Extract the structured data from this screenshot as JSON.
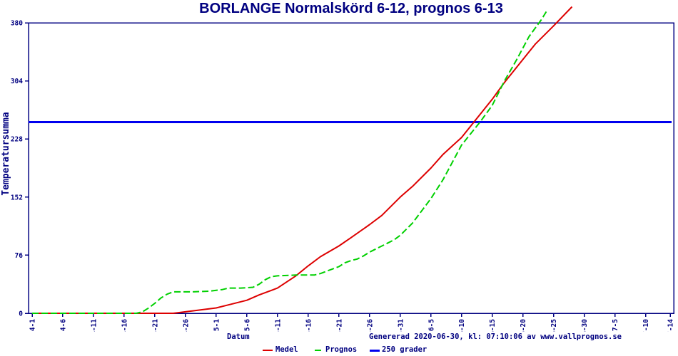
{
  "title": "BORLANGE Normalskörd 6-12, prognos 6-13",
  "footer": {
    "generated": "Genererad 2020-06-30, kl: 07:10:06 av www.vallprognos.se"
  },
  "legend": {
    "position": "bottom-center",
    "items": [
      {
        "label": "Medel",
        "color": "#dd0000",
        "line_style": "solid"
      },
      {
        "label": "Prognos",
        "color": "#00d000",
        "line_style": "dashed"
      },
      {
        "label": "250 grader",
        "color": "#0000ee",
        "line_style": "solid"
      }
    ]
  },
  "colors": {
    "axis": "#000080",
    "text": "#000080",
    "medel_line": "#dd0000",
    "prognos_line": "#00d000",
    "reference_line": "#0000ee",
    "background": "#ffffff"
  },
  "chart_data": {
    "type": "line",
    "title": "BORLANGE Normalskörd 6-12, prognos 6-13",
    "xlabel": "Datum",
    "ylabel": "Temperatursumma",
    "ylim": [
      0,
      380
    ],
    "yticks": [
      0,
      76,
      152,
      228,
      304,
      380
    ],
    "xticks": [
      "4-1",
      "4-6",
      "4-11",
      "4-16",
      "4-21",
      "4-26",
      "5-1",
      "5-6",
      "5-11",
      "5-16",
      "5-21",
      "5-26",
      "5-31",
      "6-5",
      "6-10",
      "6-15",
      "6-20",
      "6-25",
      "6-30",
      "7-5",
      "7-10",
      "7-14"
    ],
    "x_range": [
      "4-1",
      "7-14"
    ],
    "grid": false,
    "reference_line": {
      "name": "250 grader",
      "value": 250,
      "color": "#0000ee"
    },
    "series": [
      {
        "name": "Medel",
        "color": "#dd0000",
        "style": "solid",
        "points": [
          [
            "4-1",
            0
          ],
          [
            "4-6",
            0
          ],
          [
            "4-11",
            0
          ],
          [
            "4-16",
            0
          ],
          [
            "4-20",
            0
          ],
          [
            "4-24",
            0
          ],
          [
            "4-26",
            2
          ],
          [
            "4-28",
            4
          ],
          [
            "5-1",
            7
          ],
          [
            "5-3",
            11
          ],
          [
            "5-6",
            17
          ],
          [
            "5-8",
            24
          ],
          [
            "5-11",
            33
          ],
          [
            "5-14",
            49
          ],
          [
            "5-16",
            62
          ],
          [
            "5-18",
            74
          ],
          [
            "5-21",
            88
          ],
          [
            "5-23",
            99
          ],
          [
            "5-26",
            116
          ],
          [
            "5-28",
            128
          ],
          [
            "5-31",
            152
          ],
          [
            "6-2",
            166
          ],
          [
            "6-5",
            190
          ],
          [
            "6-7",
            208
          ],
          [
            "6-10",
            230
          ],
          [
            "6-12",
            250
          ],
          [
            "6-15",
            280
          ],
          [
            "6-17",
            302
          ],
          [
            "6-20",
            332
          ],
          [
            "6-22",
            352
          ],
          [
            "6-25",
            376
          ],
          [
            "6-28",
            401
          ]
        ]
      },
      {
        "name": "Prognos",
        "color": "#00d000",
        "style": "dashed",
        "points": [
          [
            "4-1",
            0
          ],
          [
            "4-6",
            0
          ],
          [
            "4-11",
            0
          ],
          [
            "4-16",
            0
          ],
          [
            "4-18",
            0
          ],
          [
            "4-19",
            2
          ],
          [
            "4-20",
            7
          ],
          [
            "4-21",
            13
          ],
          [
            "4-22",
            20
          ],
          [
            "4-23",
            25
          ],
          [
            "4-24",
            28
          ],
          [
            "4-27",
            28
          ],
          [
            "4-30",
            29
          ],
          [
            "5-2",
            31
          ],
          [
            "5-3",
            33
          ],
          [
            "5-5",
            33
          ],
          [
            "5-7",
            34
          ],
          [
            "5-8",
            38
          ],
          [
            "5-9",
            44
          ],
          [
            "5-10",
            48
          ],
          [
            "5-11",
            49
          ],
          [
            "5-14",
            50
          ],
          [
            "5-17",
            50
          ],
          [
            "5-18",
            52
          ],
          [
            "5-19",
            55
          ],
          [
            "5-20",
            58
          ],
          [
            "5-21",
            61
          ],
          [
            "5-22",
            66
          ],
          [
            "5-23",
            69
          ],
          [
            "5-24",
            71
          ],
          [
            "5-25",
            75
          ],
          [
            "5-26",
            80
          ],
          [
            "5-28",
            88
          ],
          [
            "5-30",
            96
          ],
          [
            "5-31",
            102
          ],
          [
            "6-2",
            118
          ],
          [
            "6-5",
            150
          ],
          [
            "6-7",
            175
          ],
          [
            "6-10",
            220
          ],
          [
            "6-13",
            250
          ],
          [
            "6-15",
            272
          ],
          [
            "6-17",
            304
          ],
          [
            "6-19",
            332
          ],
          [
            "6-21",
            362
          ],
          [
            "6-23",
            384
          ],
          [
            "6-24",
            397
          ]
        ]
      }
    ]
  }
}
